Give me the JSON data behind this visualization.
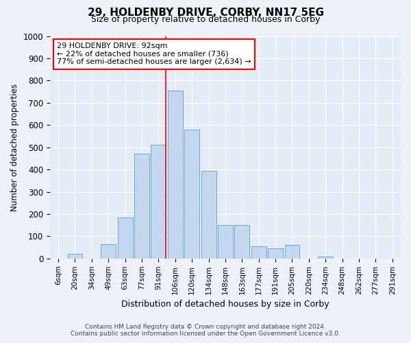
{
  "title": "29, HOLDENBY DRIVE, CORBY, NN17 5EG",
  "subtitle": "Size of property relative to detached houses in Corby",
  "xlabel": "Distribution of detached houses by size in Corby",
  "ylabel": "Number of detached properties",
  "bar_categories": [
    "6sqm",
    "20sqm",
    "34sqm",
    "49sqm",
    "63sqm",
    "77sqm",
    "91sqm",
    "106sqm",
    "120sqm",
    "134sqm",
    "148sqm",
    "163sqm",
    "177sqm",
    "191sqm",
    "205sqm",
    "220sqm",
    "234sqm",
    "248sqm",
    "262sqm",
    "277sqm",
    "291sqm"
  ],
  "bar_values": [
    0,
    20,
    0,
    65,
    185,
    470,
    510,
    755,
    580,
    395,
    150,
    150,
    55,
    45,
    60,
    0,
    10,
    0,
    0,
    0,
    0
  ],
  "bar_color": "#c5d8f0",
  "bar_edge_color": "#6aaad4",
  "annotation_line_index": 6,
  "annotation_box_text": "29 HOLDENBY DRIVE: 92sqm\n← 22% of detached houses are smaller (736)\n77% of semi-detached houses are larger (2,634) →",
  "ylim": [
    0,
    1000
  ],
  "yticks": [
    0,
    100,
    200,
    300,
    400,
    500,
    600,
    700,
    800,
    900,
    1000
  ],
  "footer_line1": "Contains HM Land Registry data © Crown copyright and database right 2024.",
  "footer_line2": "Contains public sector information licensed under the Open Government Licence v3.0.",
  "background_color": "#eef2f8",
  "plot_background": "#e4ecf7"
}
